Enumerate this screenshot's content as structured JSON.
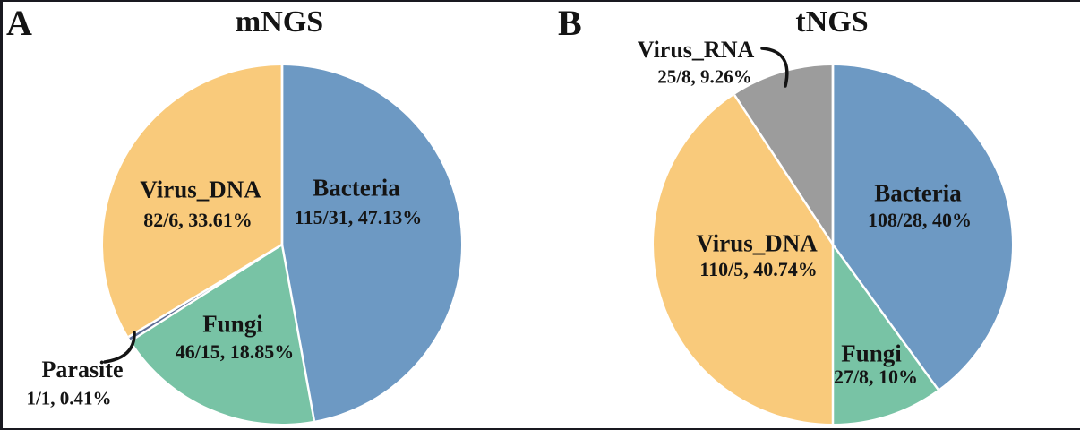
{
  "figure": {
    "description_colors": {
      "bacteria": "#6d99c3",
      "fungi": "#78c3a5",
      "virus_dna": "#f9ca7b",
      "virus_rna": "#9c9c9c",
      "parasite": "#5f6d96",
      "text": "#141414",
      "slice_border": "#ffffff"
    }
  },
  "chart_data": [
    {
      "type": "pie",
      "panel": "A",
      "title": "mNGS",
      "start_angle_deg": 0,
      "direction": "clockwise",
      "legend": "none (labels on slices)",
      "slices": [
        {
          "label": "Bacteria",
          "counts": "115/31",
          "pct": 47.13,
          "value_text": "115/31, 47.13%",
          "color": "#6d99c3",
          "label_inside": true
        },
        {
          "label": "Fungi",
          "counts": "46/15",
          "pct": 18.85,
          "value_text": "46/15, 18.85%",
          "color": "#78c3a5",
          "label_inside": true
        },
        {
          "label": "Parasite",
          "counts": "1/1",
          "pct": 0.41,
          "value_text": "1/1, 0.41%",
          "color": "#5f6d96",
          "label_inside": false
        },
        {
          "label": "Virus_DNA",
          "counts": "82/6",
          "pct": 33.61,
          "value_text": "82/6, 33.61%",
          "color": "#f9ca7b",
          "label_inside": true
        }
      ]
    },
    {
      "type": "pie",
      "panel": "B",
      "title": "tNGS",
      "start_angle_deg": 0,
      "direction": "clockwise",
      "legend": "none (labels on slices)",
      "slices": [
        {
          "label": "Bacteria",
          "counts": "108/28",
          "pct": 40.0,
          "value_text": "108/28, 40%",
          "color": "#6d99c3",
          "label_inside": true
        },
        {
          "label": "Fungi",
          "counts": "27/8",
          "pct": 10.0,
          "value_text": "27/8, 10%",
          "color": "#78c3a5",
          "label_inside": true
        },
        {
          "label": "Virus_DNA",
          "counts": "110/5",
          "pct": 40.74,
          "value_text": "110/5, 40.74%",
          "color": "#f9ca7b",
          "label_inside": true
        },
        {
          "label": "Virus_RNA",
          "counts": "25/8",
          "pct": 9.26,
          "value_text": "25/8, 9.26%",
          "color": "#9c9c9c",
          "label_inside": false
        }
      ]
    }
  ]
}
